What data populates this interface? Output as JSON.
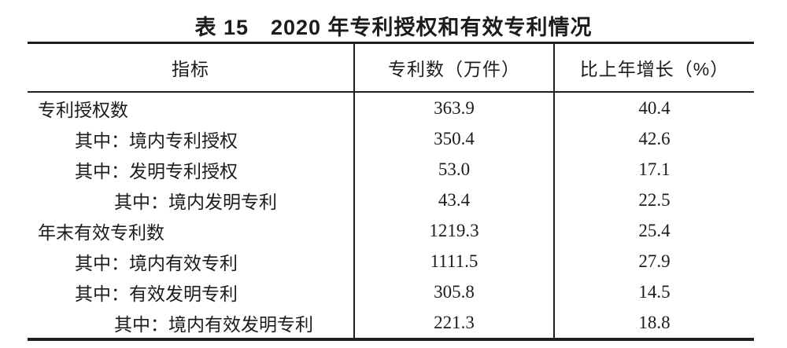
{
  "title": "表 15　2020 年专利授权和有效专利情况",
  "table": {
    "columns": [
      {
        "label": "指标"
      },
      {
        "label": "专利数（万件）"
      },
      {
        "label": "比上年增长（%）"
      }
    ],
    "rows": [
      {
        "indicator": "专利授权数",
        "indent": 0,
        "patents": "363.9",
        "growth": "40.4"
      },
      {
        "indicator": "其中：境内专利授权",
        "indent": 1,
        "patents": "350.4",
        "growth": "42.6"
      },
      {
        "indicator": "其中：发明专利授权",
        "indent": 1,
        "patents": "53.0",
        "growth": "17.1"
      },
      {
        "indicator": "其中：境内发明专利",
        "indent": 2,
        "patents": "43.4",
        "growth": "22.5"
      },
      {
        "indicator": "年末有效专利数",
        "indent": 0,
        "patents": "1219.3",
        "growth": "25.4"
      },
      {
        "indicator": "其中：境内有效专利",
        "indent": 1,
        "patents": "1111.5",
        "growth": "27.9"
      },
      {
        "indicator": "其中：有效发明专利",
        "indent": 1,
        "patents": "305.8",
        "growth": "14.5"
      },
      {
        "indicator": "其中：境内有效发明专利",
        "indent": 2,
        "patents": "221.3",
        "growth": "18.8"
      }
    ]
  },
  "colors": {
    "text": "#1c1c1c",
    "border": "#1f1f1f",
    "background": "#ffffff"
  },
  "chart_data": {
    "type": "table",
    "title": "表 15　2020 年专利授权和有效专利情况",
    "columns": [
      "指标",
      "专利数（万件）",
      "比上年增长（%）"
    ],
    "rows": [
      [
        "专利授权数",
        363.9,
        40.4
      ],
      [
        "其中：境内专利授权",
        350.4,
        42.6
      ],
      [
        "其中：发明专利授权",
        53.0,
        17.1
      ],
      [
        "其中：境内发明专利",
        43.4,
        22.5
      ],
      [
        "年末有效专利数",
        1219.3,
        25.4
      ],
      [
        "其中：境内有效专利",
        1111.5,
        27.9
      ],
      [
        "其中：有效发明专利",
        305.8,
        14.5
      ],
      [
        "其中：境内有效发明专利",
        221.3,
        18.8
      ]
    ]
  }
}
